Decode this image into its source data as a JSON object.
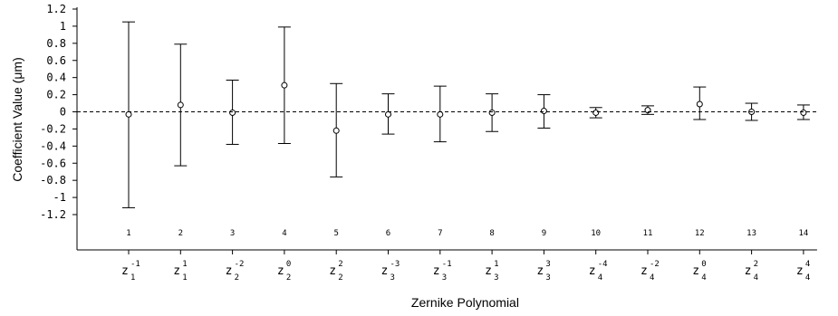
{
  "chart_data": {
    "type": "scatter",
    "xlabel": "Zernike Polynomial",
    "ylabel": "Coefficient Value (μm)",
    "ylim": [
      -1.35,
      1.2
    ],
    "y_ticks": [
      "1.2",
      "1",
      "0.8",
      "0.6",
      "0.4",
      "0.2",
      "0",
      "-0.2",
      "-0.4",
      "-0.6",
      "-0.8",
      "-1",
      "-1.2"
    ],
    "y_tick_values": [
      1.2,
      1,
      0.8,
      0.6,
      0.4,
      0.2,
      0,
      -0.2,
      -0.4,
      -0.6,
      -0.8,
      -1,
      -1.2
    ],
    "reference_line": 0,
    "grid": false,
    "indices": [
      "1",
      "2",
      "3",
      "4",
      "5",
      "6",
      "7",
      "8",
      "9",
      "10",
      "11",
      "12",
      "13",
      "14"
    ],
    "categories": [
      {
        "base": "z",
        "sub": "1",
        "sup": "-1"
      },
      {
        "base": "z",
        "sub": "1",
        "sup": "1"
      },
      {
        "base": "z",
        "sub": "2",
        "sup": "-2"
      },
      {
        "base": "z",
        "sub": "2",
        "sup": "0"
      },
      {
        "base": "z",
        "sub": "2",
        "sup": "2"
      },
      {
        "base": "z",
        "sub": "3",
        "sup": "-3"
      },
      {
        "base": "z",
        "sub": "3",
        "sup": "-1"
      },
      {
        "base": "z",
        "sub": "3",
        "sup": "1"
      },
      {
        "base": "z",
        "sub": "3",
        "sup": "3"
      },
      {
        "base": "z",
        "sub": "4",
        "sup": "-4"
      },
      {
        "base": "z",
        "sub": "4",
        "sup": "-2"
      },
      {
        "base": "z",
        "sub": "4",
        "sup": "0"
      },
      {
        "base": "z",
        "sub": "4",
        "sup": "2"
      },
      {
        "base": "z",
        "sub": "4",
        "sup": "4"
      }
    ],
    "values": [
      -0.03,
      0.08,
      -0.01,
      0.31,
      -0.22,
      -0.03,
      -0.03,
      -0.01,
      0.01,
      -0.01,
      0.02,
      0.09,
      0.0,
      -0.01
    ],
    "upper": [
      1.05,
      0.79,
      0.37,
      0.99,
      0.33,
      0.21,
      0.3,
      0.21,
      0.2,
      0.05,
      0.07,
      0.29,
      0.1,
      0.08
    ],
    "lower": [
      -1.12,
      -0.63,
      -0.38,
      -0.37,
      -0.76,
      -0.26,
      -0.35,
      -0.23,
      -0.19,
      -0.07,
      -0.03,
      -0.09,
      -0.1,
      -0.09
    ]
  }
}
